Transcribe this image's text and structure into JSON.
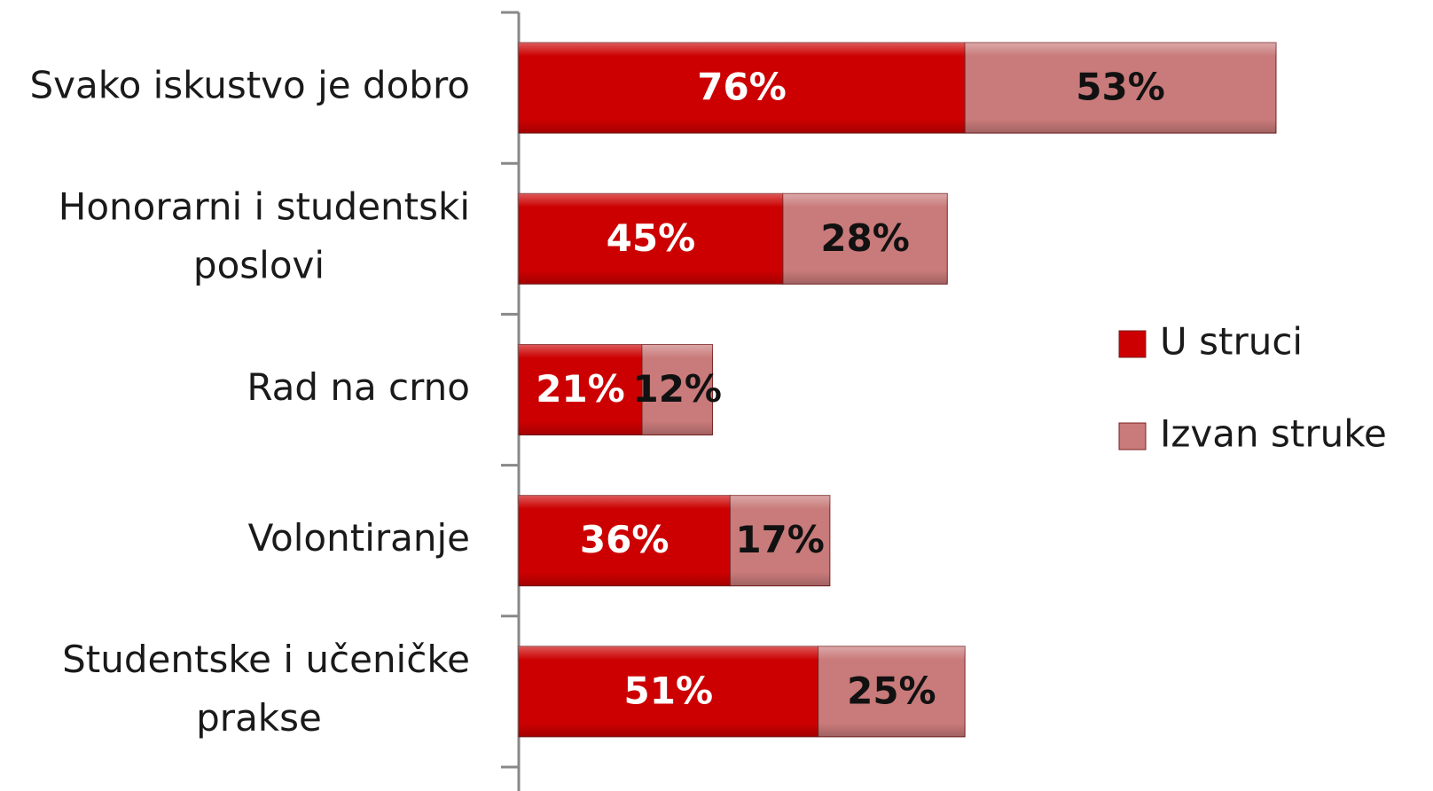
{
  "chart_data": {
    "type": "stacked-bar-horizontal",
    "categories": [
      "Svako iskustvo je dobro",
      "Honorarni i studentski poslovi",
      "Rad na crno",
      "Volontiranje",
      "Studentske i učeničke prakse"
    ],
    "series": [
      {
        "name": "U struci",
        "color": "#cc0000",
        "values": [
          76,
          45,
          21,
          36,
          51
        ],
        "value_labels": [
          "76%",
          "45%",
          "21%",
          "36%",
          "51%"
        ]
      },
      {
        "name": "Izvan struke",
        "color": "#c97a7a",
        "values": [
          53,
          28,
          12,
          17,
          25
        ],
        "value_labels": [
          "53%",
          "28%",
          "12%",
          "17%",
          "25%"
        ]
      }
    ],
    "legend": "right"
  }
}
